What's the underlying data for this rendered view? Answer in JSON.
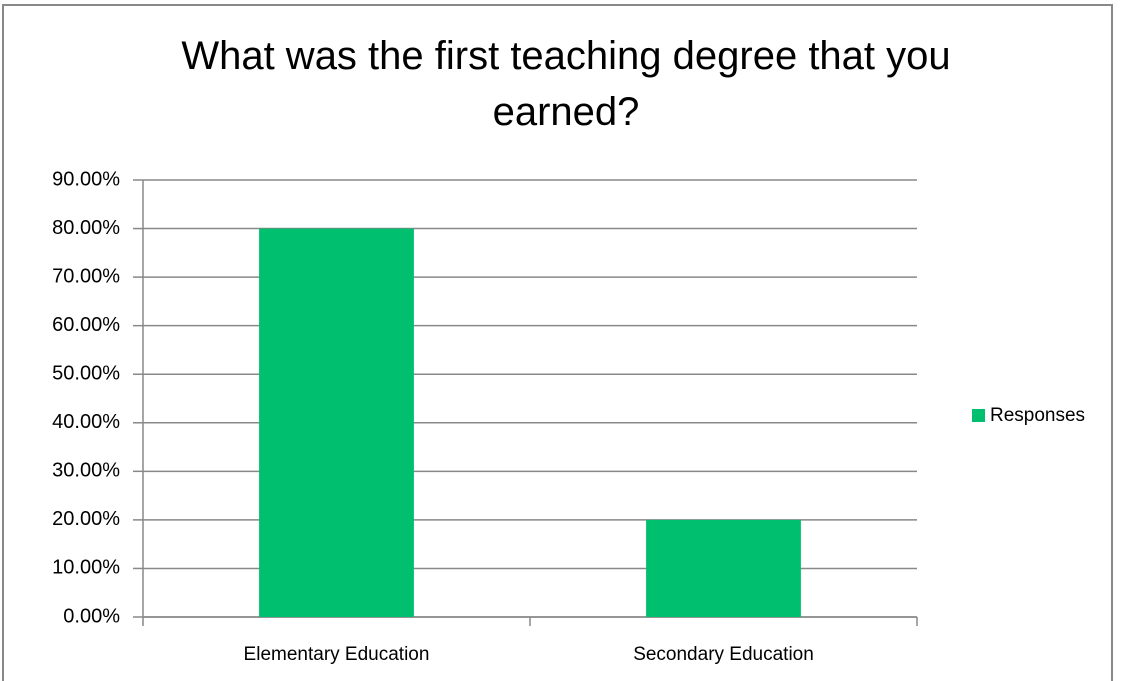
{
  "chart_data": {
    "type": "bar",
    "title": "What was the first teaching degree that you earned?",
    "categories": [
      "Elementary Education",
      "Secondary Education"
    ],
    "series": [
      {
        "name": "Responses",
        "color": "#00bf6f",
        "values": [
          80,
          20
        ]
      }
    ],
    "ylim": [
      0,
      90
    ],
    "yticks": [
      {
        "value": 0,
        "label": "0.00%"
      },
      {
        "value": 10,
        "label": "10.00%"
      },
      {
        "value": 20,
        "label": "20.00%"
      },
      {
        "value": 30,
        "label": "30.00%"
      },
      {
        "value": 40,
        "label": "40.00%"
      },
      {
        "value": 50,
        "label": "50.00%"
      },
      {
        "value": 60,
        "label": "60.00%"
      },
      {
        "value": 70,
        "label": "70.00%"
      },
      {
        "value": 80,
        "label": "80.00%"
      },
      {
        "value": 90,
        "label": "90.00%"
      }
    ],
    "grid": true,
    "legend": "right"
  }
}
